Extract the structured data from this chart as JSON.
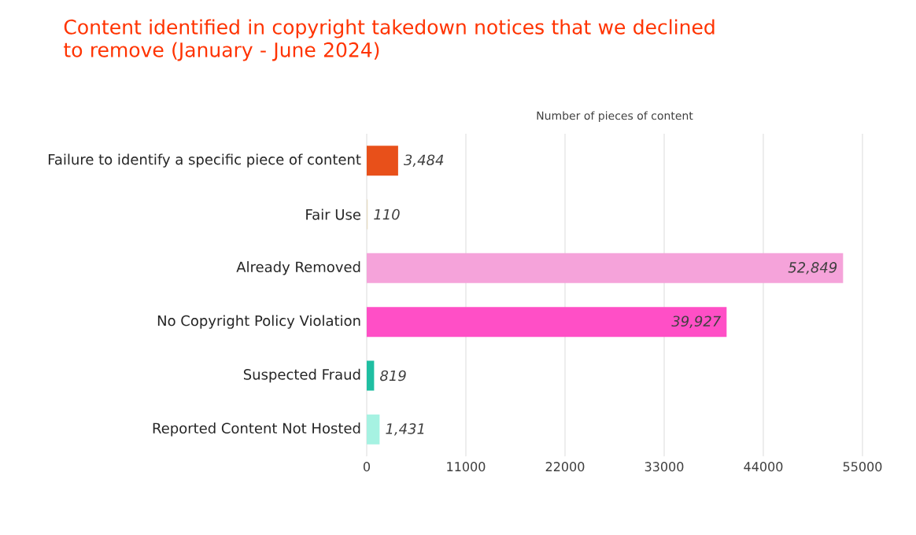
{
  "chart_data": {
    "type": "bar",
    "orientation": "horizontal",
    "title": "Content identified in copyright takedown notices that we declined to remove (January - June 2024)",
    "xlabel": "Number of pieces of content",
    "categories": [
      "Failure to identify a specific piece of content",
      "Fair Use",
      "Already Removed",
      "No Copyright Policy Violation",
      "Suspected Fraud",
      "Reported Content Not Hosted"
    ],
    "values": [
      3484,
      110,
      52849,
      39927,
      819,
      1431
    ],
    "value_labels": [
      "3,484",
      "110",
      "52,849",
      "39,927",
      "819",
      "1,431"
    ],
    "colors": [
      "#e8501a",
      "#e6dcc4",
      "#f5a3da",
      "#ff4fc6",
      "#1fbfa2",
      "#a6f2e2"
    ],
    "xlim": [
      0,
      55000
    ],
    "xticks": [
      0,
      11000,
      22000,
      33000,
      44000,
      55000
    ],
    "grid": "x"
  }
}
